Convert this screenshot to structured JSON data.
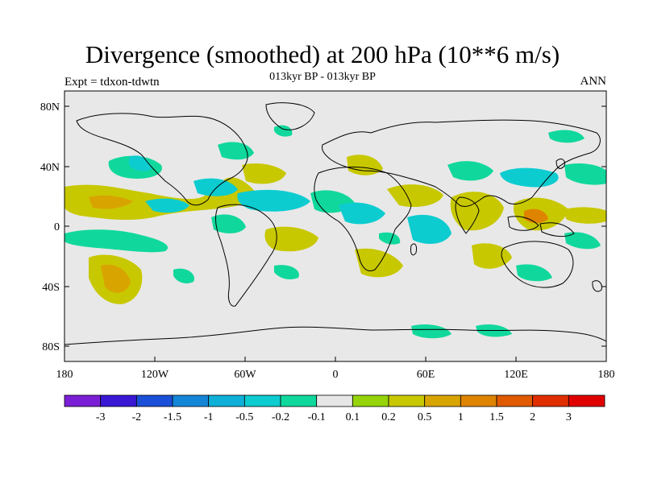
{
  "title": "Divergence (smoothed) at 200 hPa (10**6 m/s)",
  "subtitle": "013kyr BP - 013kyr BP",
  "left_label": "Expt = tdxon-tdwtn",
  "right_label": "ANN",
  "map": {
    "lat_ticks": [
      "80N",
      "40N",
      "0",
      "40S",
      "80S"
    ],
    "lon_ticks": [
      "180",
      "120W",
      "60W",
      "0",
      "60E",
      "120E",
      "180"
    ],
    "background_color": "#e8e8e8",
    "coastline_color": "#000000"
  },
  "colorbar": {
    "colors": [
      "#7b1fd6",
      "#3a18d4",
      "#1a4fd8",
      "#1486d8",
      "#0fb0d8",
      "#0cccd0",
      "#10d89c",
      "#e6e6e6",
      "#96d40a",
      "#c8c800",
      "#d8a400",
      "#de8400",
      "#e05a00",
      "#e02e00",
      "#e00000"
    ],
    "labels": [
      "-3",
      "-2",
      "-1.5",
      "-1",
      "-0.5",
      "-0.2",
      "-0.1",
      "0.1",
      "0.2",
      "0.5",
      "1",
      "1.5",
      "2",
      "3"
    ]
  },
  "legend_colors": {
    "neg_strong": "#0cccd0",
    "neg_weak": "#10d89c",
    "pos_weak": "#96d40a",
    "pos_mid": "#c8c800",
    "pos_strong": "#d8a400",
    "pos_peak": "#de8400"
  }
}
